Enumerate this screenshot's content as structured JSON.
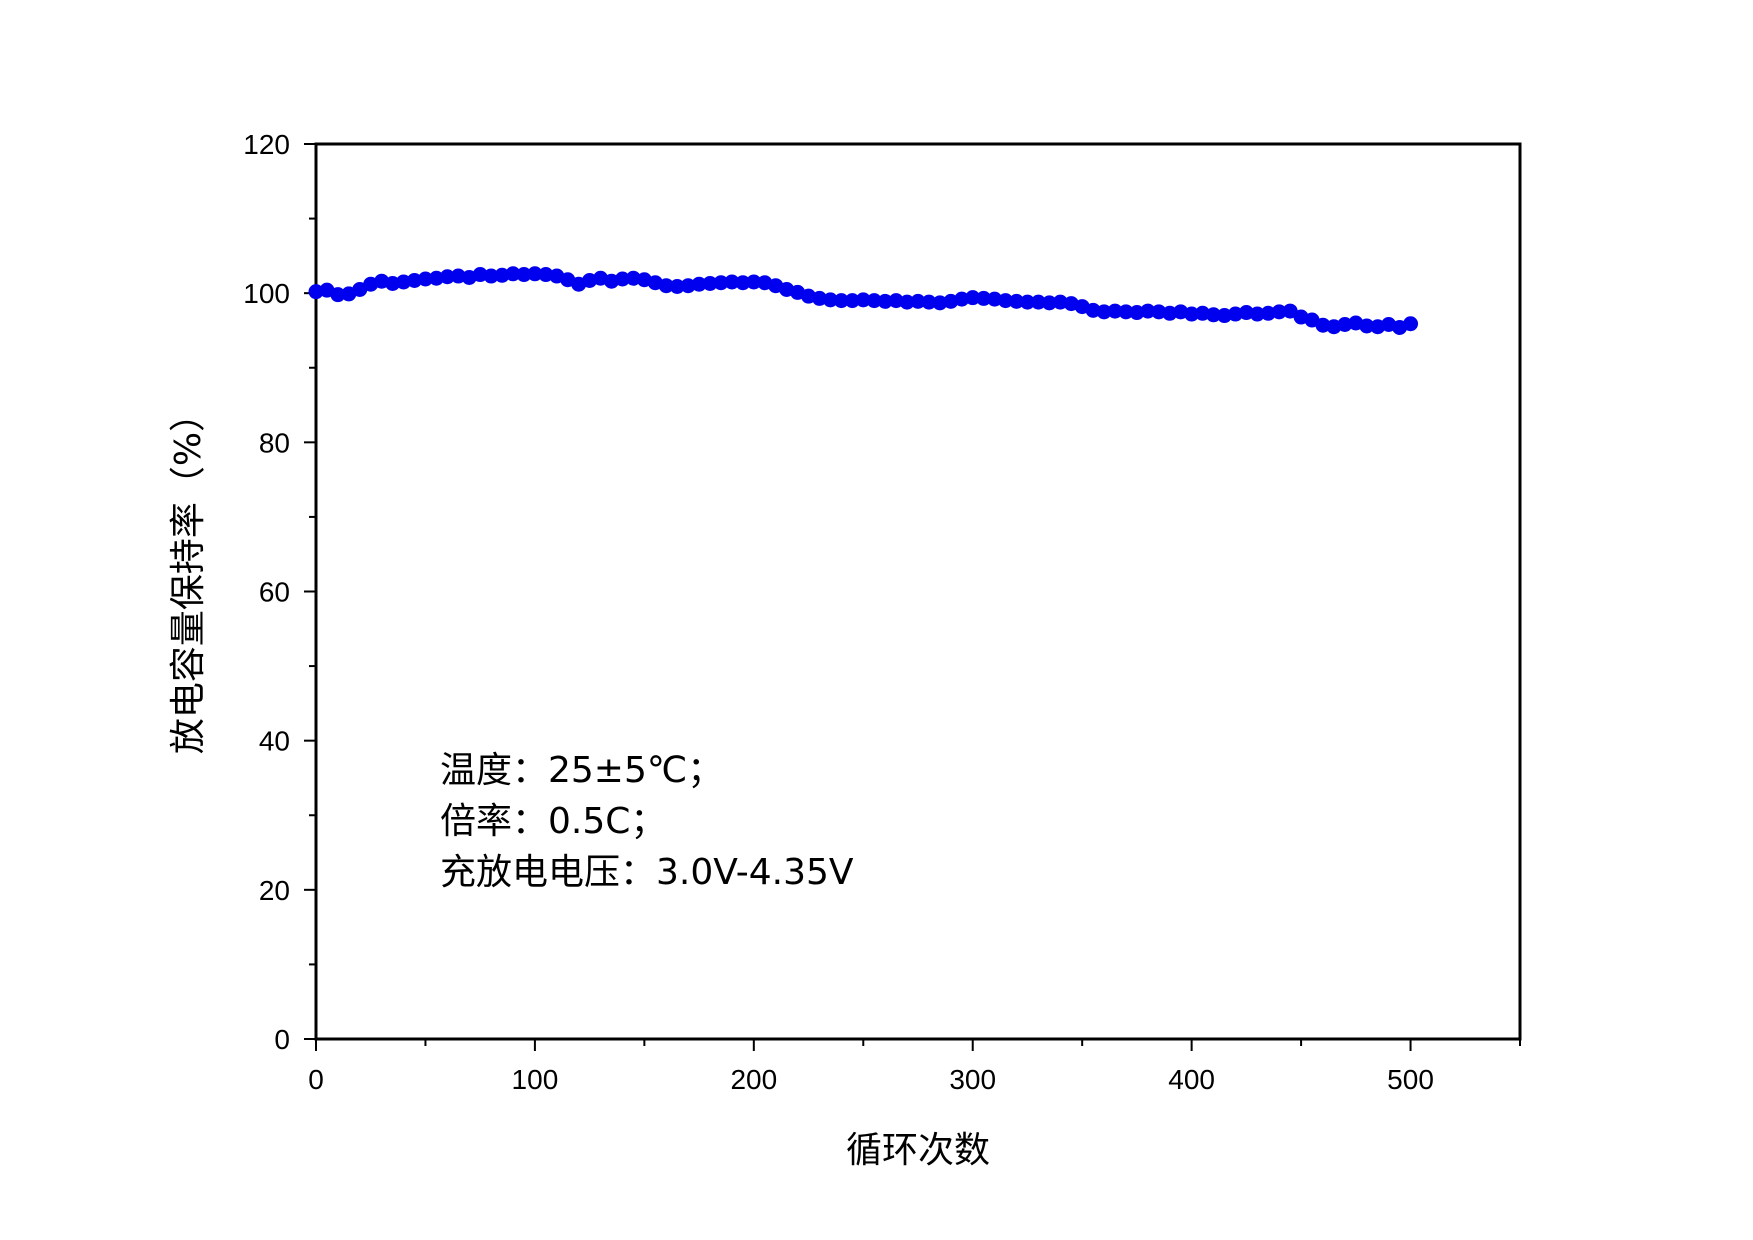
{
  "chart_data": {
    "type": "scatter",
    "title": "",
    "xlabel": "循环次数",
    "ylabel": "放电容量保持率（%）",
    "xlim": [
      0,
      550
    ],
    "ylim": [
      0,
      120
    ],
    "x_ticks": [
      0,
      100,
      200,
      300,
      400,
      500
    ],
    "x_tick_labels": [
      "0",
      "100",
      "200",
      "300",
      "400",
      "500"
    ],
    "y_ticks": [
      0,
      20,
      40,
      60,
      80,
      100,
      120
    ],
    "y_tick_labels": [
      "0",
      "20",
      "40",
      "60",
      "80",
      "100",
      "120"
    ],
    "grid": false,
    "legend": "none",
    "marker_color": "#0000ee",
    "annotations": [
      "温度：25±5℃；",
      "倍率：0.5C；",
      "充放电电压：3.0V-4.35V"
    ],
    "series": [
      {
        "x": [
          0,
          5,
          10,
          15,
          20,
          25,
          30,
          35,
          40,
          45,
          50,
          55,
          60,
          65,
          70,
          75,
          80,
          85,
          90,
          95,
          100,
          105,
          110,
          115,
          120,
          125,
          130,
          135,
          140,
          145,
          150,
          155,
          160,
          165,
          170,
          175,
          180,
          185,
          190,
          195,
          200,
          205,
          210,
          215,
          220,
          225,
          230,
          235,
          240,
          245,
          250,
          255,
          260,
          265,
          270,
          275,
          280,
          285,
          290,
          295,
          300,
          305,
          310,
          315,
          320,
          325,
          330,
          335,
          340,
          345,
          350,
          355,
          360,
          365,
          370,
          375,
          380,
          385,
          390,
          395,
          400,
          405,
          410,
          415,
          420,
          425,
          430,
          435,
          440,
          445,
          450,
          455,
          460,
          465,
          470,
          475,
          480,
          485,
          490,
          495,
          500
        ],
        "y": [
          100.2,
          100.4,
          99.8,
          99.9,
          100.5,
          101.2,
          101.6,
          101.3,
          101.5,
          101.7,
          101.9,
          102.0,
          102.2,
          102.3,
          102.1,
          102.5,
          102.3,
          102.4,
          102.6,
          102.5,
          102.6,
          102.5,
          102.3,
          101.8,
          101.2,
          101.7,
          102.0,
          101.6,
          101.9,
          102.0,
          101.8,
          101.4,
          101.0,
          100.9,
          101.0,
          101.2,
          101.3,
          101.4,
          101.5,
          101.4,
          101.5,
          101.4,
          101.0,
          100.5,
          100.1,
          99.6,
          99.3,
          99.1,
          99.0,
          99.0,
          99.1,
          99.0,
          98.9,
          99.0,
          98.8,
          98.9,
          98.8,
          98.7,
          98.9,
          99.2,
          99.4,
          99.3,
          99.2,
          99.0,
          98.9,
          98.8,
          98.8,
          98.7,
          98.8,
          98.6,
          98.2,
          97.7,
          97.5,
          97.6,
          97.5,
          97.4,
          97.6,
          97.5,
          97.3,
          97.5,
          97.2,
          97.3,
          97.1,
          97.0,
          97.2,
          97.4,
          97.2,
          97.3,
          97.5,
          97.6,
          96.8,
          96.4,
          95.7,
          95.5,
          95.8,
          96.0,
          95.6,
          95.5,
          95.8,
          95.4,
          95.9
        ]
      }
    ]
  }
}
